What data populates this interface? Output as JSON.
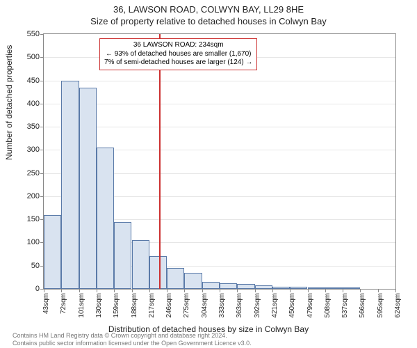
{
  "title_line1": "36, LAWSON ROAD, COLWYN BAY, LL29 8HE",
  "title_line2": "Size of property relative to detached houses in Colwyn Bay",
  "ylabel": "Number of detached properties",
  "xlabel": "Distribution of detached houses by size in Colwyn Bay",
  "footer_line1": "Contains HM Land Registry data © Crown copyright and database right 2024.",
  "footer_line2": "Contains public sector information licensed under the Open Government Licence v3.0.",
  "chart": {
    "type": "histogram",
    "background_color": "#ffffff",
    "grid_color": "#e6e6e6",
    "bar_fill": "#d9e3f0",
    "bar_stroke": "#5a7aa8",
    "ref_line_color": "#cc3030",
    "info_border_color": "#cc3030",
    "ylim": [
      0,
      550
    ],
    "ytick_step": 50,
    "yticks": [
      0,
      50,
      100,
      150,
      200,
      250,
      300,
      350,
      400,
      450,
      500,
      550
    ],
    "xticks": [
      "43sqm",
      "72sqm",
      "101sqm",
      "130sqm",
      "159sqm",
      "188sqm",
      "217sqm",
      "246sqm",
      "275sqm",
      "304sqm",
      "333sqm",
      "363sqm",
      "392sqm",
      "421sqm",
      "450sqm",
      "479sqm",
      "508sqm",
      "537sqm",
      "566sqm",
      "595sqm",
      "624sqm"
    ],
    "values": [
      160,
      450,
      435,
      305,
      145,
      105,
      70,
      45,
      35,
      15,
      12,
      10,
      8,
      5,
      4,
      3,
      2,
      1,
      0,
      0
    ],
    "ref_value_sqm": 234,
    "x_min_sqm": 43,
    "x_max_sqm": 624,
    "info_box": {
      "line1": "36 LAWSON ROAD: 234sqm",
      "line2": "← 93% of detached houses are smaller (1,670)",
      "line3": "7% of semi-detached houses are larger (124) →"
    },
    "title_fontsize": 13,
    "label_fontsize": 12,
    "tick_fontsize": 11
  }
}
